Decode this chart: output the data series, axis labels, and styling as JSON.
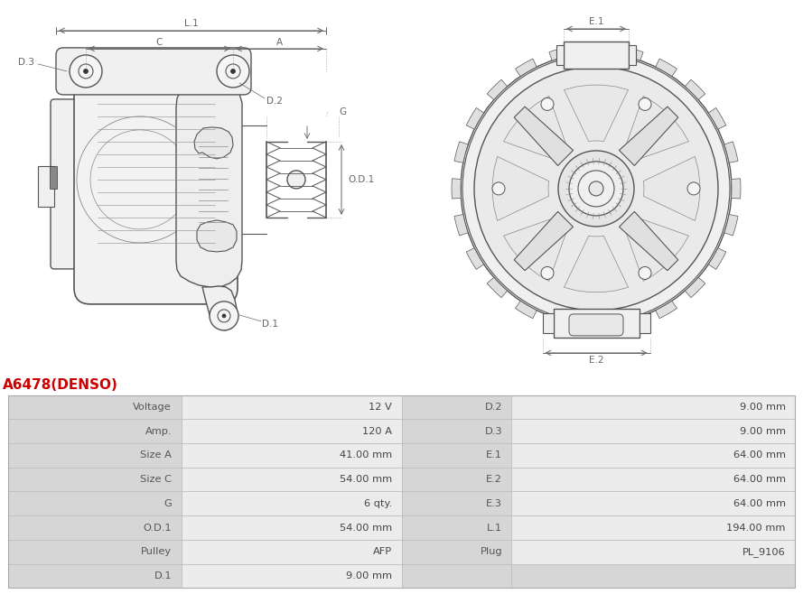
{
  "title": "A6478(DENSO)",
  "title_color": "#cc0000",
  "bg_color": "#ffffff",
  "table_rows": [
    [
      "Voltage",
      "12 V",
      "D.2",
      "9.00 mm"
    ],
    [
      "Amp.",
      "120 A",
      "D.3",
      "9.00 mm"
    ],
    [
      "Size A",
      "41.00 mm",
      "E.1",
      "64.00 mm"
    ],
    [
      "Size C",
      "54.00 mm",
      "E.2",
      "64.00 mm"
    ],
    [
      "G",
      "6 qty.",
      "E.3",
      "64.00 mm"
    ],
    [
      "O.D.1",
      "54.00 mm",
      "L.1",
      "194.00 mm"
    ],
    [
      "Pulley",
      "AFP",
      "Plug",
      "PL_9106"
    ],
    [
      "D.1",
      "9.00 mm",
      "",
      ""
    ]
  ],
  "lc": "#888888",
  "lc2": "#555555",
  "lc3": "#333333",
  "dim_color": "#555555",
  "label_color": "#555555"
}
